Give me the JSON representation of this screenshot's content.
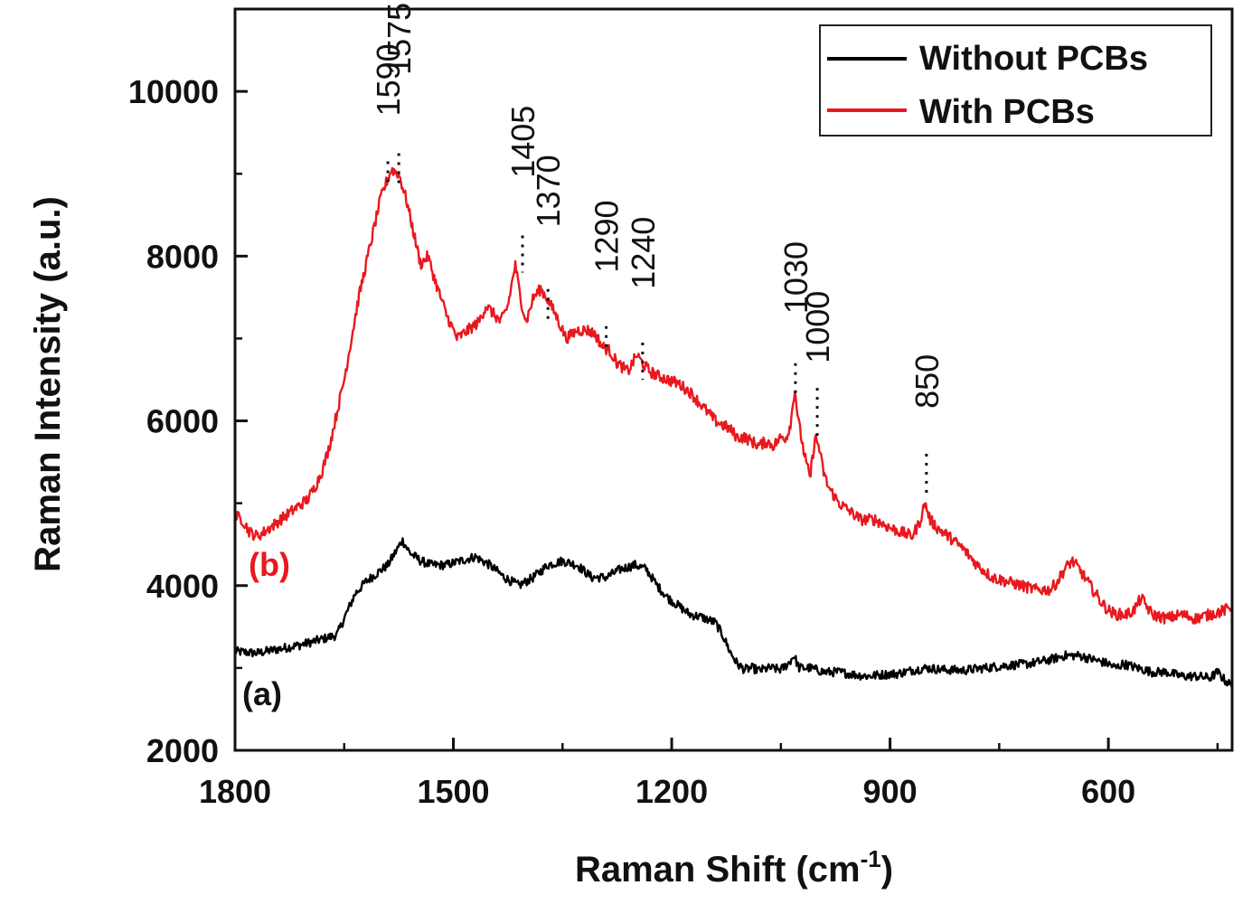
{
  "chart_data": {
    "type": "line",
    "title": "",
    "xlabel": "Raman Shift (cm",
    "xlabel_sup": "-1",
    "xlabel_close": ")",
    "ylabel": "Raman Intensity (a.u.)",
    "xlim": [
      1800,
      430
    ],
    "ylim": [
      2000,
      11000
    ],
    "x_ticks": [
      1800,
      1500,
      1200,
      900,
      600
    ],
    "x_tick_labels": [
      "1800",
      "1500",
      "1200",
      "900",
      "600"
    ],
    "y_ticks": [
      2000,
      4000,
      6000,
      8000,
      10000
    ],
    "y_tick_labels": [
      "2000",
      "4000",
      "6000",
      "8000",
      "10000"
    ],
    "legend_position": "top-right",
    "series": [
      {
        "name": "Without PCBs",
        "tag": "(a)",
        "color": "#000000",
        "x": [
          1800,
          1770,
          1740,
          1710,
          1680,
          1660,
          1650,
          1635,
          1620,
          1605,
          1590,
          1580,
          1570,
          1560,
          1545,
          1530,
          1510,
          1490,
          1470,
          1450,
          1430,
          1410,
          1390,
          1370,
          1350,
          1330,
          1310,
          1290,
          1270,
          1250,
          1235,
          1220,
          1205,
          1190,
          1175,
          1160,
          1140,
          1130,
          1120,
          1110,
          1100,
          1090,
          1080,
          1065,
          1050,
          1040,
          1032,
          1025,
          1010,
          990,
          970,
          950,
          930,
          910,
          890,
          870,
          850,
          830,
          800,
          770,
          740,
          710,
          680,
          660,
          640,
          620,
          600,
          590,
          580,
          560,
          540,
          520,
          500,
          480,
          460,
          450,
          440,
          430
        ],
        "y": [
          3200,
          3180,
          3230,
          3280,
          3350,
          3400,
          3600,
          3900,
          4050,
          4150,
          4250,
          4400,
          4550,
          4400,
          4300,
          4250,
          4250,
          4300,
          4350,
          4250,
          4100,
          4000,
          4100,
          4250,
          4300,
          4250,
          4100,
          4100,
          4200,
          4250,
          4200,
          4000,
          3850,
          3750,
          3650,
          3620,
          3550,
          3400,
          3200,
          3050,
          2980,
          3000,
          2970,
          3000,
          2980,
          3050,
          3150,
          3000,
          3000,
          2950,
          2950,
          2920,
          2900,
          2920,
          2930,
          2970,
          3000,
          2980,
          2970,
          3000,
          3030,
          3050,
          3100,
          3150,
          3150,
          3100,
          3050,
          3000,
          3050,
          3000,
          2950,
          2950,
          2900,
          2900,
          2880,
          2950,
          2850,
          2780
        ]
      },
      {
        "name": "With PCBs",
        "tag": "(b)",
        "color": "#e8191e",
        "x": [
          1800,
          1790,
          1780,
          1770,
          1760,
          1745,
          1730,
          1715,
          1700,
          1690,
          1680,
          1670,
          1660,
          1650,
          1640,
          1630,
          1620,
          1610,
          1600,
          1592,
          1585,
          1575,
          1565,
          1555,
          1545,
          1535,
          1525,
          1510,
          1495,
          1480,
          1465,
          1455,
          1445,
          1435,
          1425,
          1415,
          1408,
          1400,
          1390,
          1380,
          1372,
          1360,
          1345,
          1330,
          1315,
          1305,
          1295,
          1285,
          1275,
          1260,
          1248,
          1240,
          1230,
          1220,
          1205,
          1190,
          1175,
          1160,
          1150,
          1140,
          1130,
          1120,
          1110,
          1100,
          1090,
          1080,
          1070,
          1060,
          1050,
          1042,
          1036,
          1031,
          1026,
          1018,
          1010,
          1003,
          998,
          992,
          985,
          970,
          955,
          940,
          920,
          900,
          885,
          870,
          860,
          852,
          845,
          835,
          820,
          800,
          780,
          760,
          740,
          720,
          700,
          680,
          670,
          660,
          650,
          640,
          625,
          610,
          600,
          590,
          575,
          565,
          555,
          540,
          520,
          500,
          480,
          460,
          440,
          430
        ],
        "y": [
          4850,
          4800,
          4650,
          4600,
          4650,
          4750,
          4850,
          4950,
          5050,
          5200,
          5400,
          5700,
          6100,
          6500,
          7000,
          7500,
          7900,
          8300,
          8700,
          8900,
          9050,
          9000,
          8700,
          8300,
          7900,
          8000,
          7700,
          7300,
          7000,
          7100,
          7200,
          7400,
          7300,
          7200,
          7400,
          7900,
          7500,
          7200,
          7500,
          7600,
          7500,
          7300,
          7000,
          7100,
          7100,
          7050,
          6900,
          6850,
          6700,
          6600,
          6800,
          6700,
          6600,
          6550,
          6500,
          6450,
          6350,
          6200,
          6100,
          6000,
          5950,
          5900,
          5800,
          5800,
          5750,
          5700,
          5750,
          5700,
          5800,
          5800,
          6000,
          6400,
          6000,
          5600,
          5300,
          5800,
          5700,
          5400,
          5200,
          5000,
          4900,
          4800,
          4800,
          4700,
          4650,
          4600,
          4750,
          5000,
          4800,
          4700,
          4600,
          4450,
          4250,
          4100,
          4050,
          4000,
          3950,
          3950,
          4050,
          4200,
          4300,
          4200,
          4000,
          3800,
          3700,
          3650,
          3650,
          3700,
          3850,
          3650,
          3600,
          3650,
          3600,
          3650,
          3700,
          3750
        ]
      }
    ],
    "annotations": [
      {
        "label": "1590",
        "x": 1590,
        "line_top": 9150,
        "line_bottom": 8850,
        "text_y": 9700
      },
      {
        "label": "1575",
        "x": 1575,
        "line_top": 9250,
        "line_bottom": 8850,
        "text_y": 10200
      },
      {
        "label": "1405",
        "x": 1405,
        "line_top": 8250,
        "line_bottom": 7800,
        "text_y": 8950
      },
      {
        "label": "1370",
        "x": 1370,
        "line_top": 7600,
        "line_bottom": 7200,
        "text_y": 8350
      },
      {
        "label": "1290",
        "x": 1290,
        "line_top": 7150,
        "line_bottom": 6850,
        "text_y": 7800
      },
      {
        "label": "1240",
        "x": 1240,
        "line_top": 6950,
        "line_bottom": 6500,
        "text_y": 7600
      },
      {
        "label": "1030",
        "x": 1030,
        "line_top": 6700,
        "line_bottom": 6300,
        "text_y": 7300
      },
      {
        "label": "1000",
        "x": 1000,
        "line_top": 6400,
        "line_bottom": 5800,
        "text_y": 6700
      },
      {
        "label": "850",
        "x": 850,
        "line_top": 5600,
        "line_bottom": 5050,
        "text_y": 6150
      }
    ]
  }
}
